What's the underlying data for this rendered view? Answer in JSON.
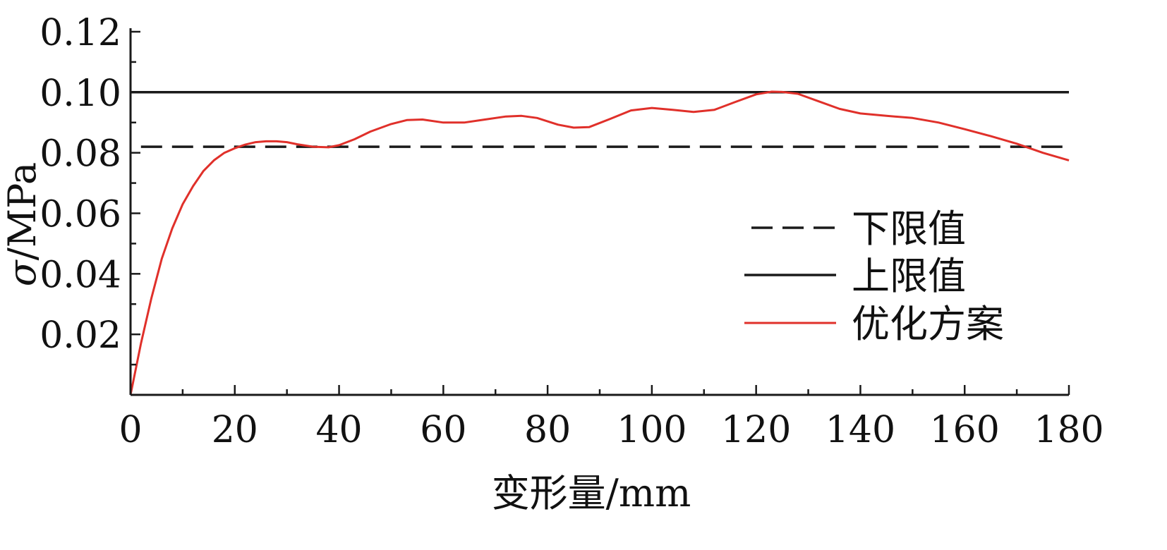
{
  "chart_data": {
    "type": "line",
    "xlabel": "变形量/mm",
    "ylabel_symbol": "σ",
    "ylabel_unit": "/MPa",
    "xlim": [
      0,
      180
    ],
    "ylim": [
      0,
      0.12
    ],
    "x_ticks": [
      0,
      20,
      40,
      60,
      80,
      100,
      120,
      140,
      160,
      180
    ],
    "x_tick_labels": [
      "0",
      "20",
      "40",
      "60",
      "80",
      "100",
      "120",
      "140",
      "160",
      "180"
    ],
    "y_ticks": [
      0.02,
      0.04,
      0.06,
      0.08,
      0.1,
      0.12
    ],
    "y_tick_labels": [
      "0.02",
      "0.04",
      "0.06",
      "0.08",
      "0.10",
      "0.12"
    ],
    "grid": false,
    "legend_position": "center-right",
    "series": [
      {
        "name": "下限值",
        "style": "dashed",
        "color": "#1a1a1a",
        "x": [
          2,
          180
        ],
        "y": [
          0.082,
          0.082
        ]
      },
      {
        "name": "上限值",
        "style": "solid",
        "color": "#1a1a1a",
        "x": [
          0,
          180
        ],
        "y": [
          0.1,
          0.1
        ]
      },
      {
        "name": "优化方案",
        "style": "solid",
        "color": "#e0302a",
        "x": [
          0,
          2,
          4,
          6,
          8,
          10,
          12,
          14,
          16,
          18,
          20,
          22,
          24,
          26,
          28,
          30,
          32,
          35,
          38,
          40,
          43,
          46,
          50,
          53,
          56,
          60,
          64,
          68,
          72,
          75,
          78,
          82,
          85,
          88,
          92,
          96,
          100,
          104,
          108,
          112,
          116,
          120,
          123,
          125,
          128,
          132,
          136,
          140,
          145,
          150,
          155,
          160,
          165,
          170,
          175,
          180
        ],
        "y": [
          0.0,
          0.017,
          0.032,
          0.045,
          0.055,
          0.063,
          0.069,
          0.074,
          0.0775,
          0.08,
          0.0815,
          0.0827,
          0.0835,
          0.0838,
          0.0838,
          0.0835,
          0.0828,
          0.082,
          0.0818,
          0.0825,
          0.0845,
          0.087,
          0.0895,
          0.0908,
          0.091,
          0.09,
          0.09,
          0.091,
          0.092,
          0.0922,
          0.0915,
          0.0893,
          0.0883,
          0.0885,
          0.0912,
          0.094,
          0.0948,
          0.0942,
          0.0935,
          0.0942,
          0.0968,
          0.0993,
          0.1002,
          0.1001,
          0.0995,
          0.097,
          0.0945,
          0.093,
          0.0922,
          0.0915,
          0.09,
          0.0878,
          0.0855,
          0.083,
          0.08,
          0.0775
        ]
      }
    ]
  }
}
